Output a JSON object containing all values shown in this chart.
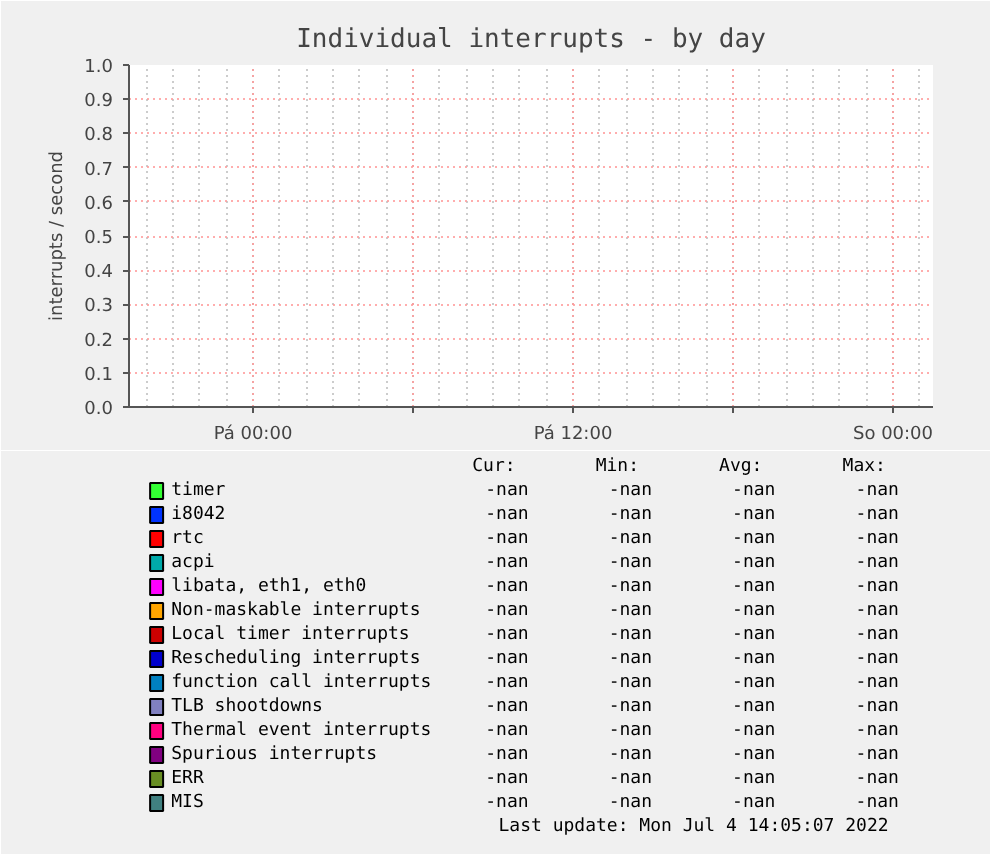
{
  "chart_data": {
    "type": "line",
    "title": "Individual interrupts - by day",
    "ylabel": "interrupts / second",
    "categories": [
      "Pá 00:00",
      "Pá 12:00",
      "So 00:00"
    ],
    "ylim": [
      0,
      1
    ],
    "yticks": [
      {
        "value": 0,
        "label": "0.0"
      },
      {
        "value": 0.1,
        "label": "0.1"
      },
      {
        "value": 0.2,
        "label": "0.2"
      },
      {
        "value": 0.3,
        "label": "0.3"
      },
      {
        "value": 0.4,
        "label": "0.4"
      },
      {
        "value": 0.5,
        "label": "0.5"
      },
      {
        "value": 0.6,
        "label": "0.6"
      },
      {
        "value": 0.7,
        "label": "0.7"
      },
      {
        "value": 0.8,
        "label": "0.8"
      },
      {
        "value": 0.9,
        "label": "0.9"
      },
      {
        "value": 1,
        "label": "1.0"
      }
    ],
    "grid": true,
    "legend": "bottom",
    "annotations": [
      "Cur:",
      "Min:",
      "Avg:",
      "Max:",
      "-nan",
      "-nan",
      "-nan",
      "-nan",
      "-nan",
      "-nan",
      "-nan",
      "-nan",
      "-nan",
      "-nan",
      "-nan",
      "-nan",
      "-nan",
      "-nan",
      "-nan",
      "-nan",
      "-nan",
      "-nan",
      "-nan",
      "-nan",
      "-nan",
      "-nan",
      "-nan",
      "-nan",
      "-nan",
      "-nan",
      "-nan",
      "-nan",
      "-nan",
      "-nan",
      "-nan",
      "-nan",
      "-nan",
      "-nan",
      "-nan",
      "-nan",
      "-nan",
      "-nan",
      "-nan",
      "-nan",
      "-nan",
      "-nan",
      "-nan",
      "-nan",
      "-nan",
      "-nan",
      "-nan",
      "-nan",
      "-nan",
      "-nan",
      "-nan",
      "-nan",
      "-nan",
      "-nan",
      "-nan",
      "-nan",
      "Last update:  Mon Jul  4 14:05:07 2022"
    ],
    "series": [
      {
        "name": "timer",
        "color": "#33ff33",
        "values": [
          null,
          null,
          null
        ]
      },
      {
        "name": "i8042",
        "color": "#0033ff",
        "values": [
          null,
          null,
          null
        ]
      },
      {
        "name": "rtc",
        "color": "#ff0000",
        "values": [
          null,
          null,
          null
        ]
      },
      {
        "name": "acpi",
        "color": "#00aaaa",
        "values": [
          null,
          null,
          null
        ]
      },
      {
        "name": "libata, eth1, eth0",
        "color": "#ff00ff",
        "values": [
          null,
          null,
          null
        ]
      },
      {
        "name": "Non-maskable interrupts",
        "color": "#ffa500",
        "values": [
          null,
          null,
          null
        ]
      },
      {
        "name": "Local timer interrupts",
        "color": "#cc0000",
        "values": [
          null,
          null,
          null
        ]
      },
      {
        "name": "Rescheduling interrupts",
        "color": "#0000cc",
        "values": [
          null,
          null,
          null
        ]
      },
      {
        "name": "function call interrupts",
        "color": "#0080c0",
        "values": [
          null,
          null,
          null
        ]
      },
      {
        "name": "TLB shootdowns",
        "color": "#8080c0",
        "values": [
          null,
          null,
          null
        ]
      },
      {
        "name": "Thermal event interrupts",
        "color": "#ff0080",
        "values": [
          null,
          null,
          null
        ]
      },
      {
        "name": "Spurious interrupts",
        "color": "#800080",
        "values": [
          null,
          null,
          null
        ]
      },
      {
        "name": "ERR",
        "color": "#688e23",
        "values": [
          null,
          null,
          null
        ]
      },
      {
        "name": "MIS",
        "color": "#408080",
        "values": [
          null,
          null,
          null
        ]
      }
    ]
  }
}
